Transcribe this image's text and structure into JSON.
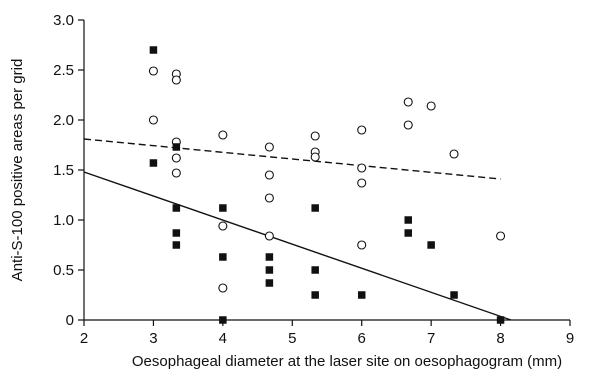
{
  "chart_data": {
    "type": "scatter",
    "title": "",
    "xlabel": "Oesophageal diameter at the laser site on oesophagogram (mm)",
    "ylabel": "Anti-S-100 positive areas per grid",
    "xlim": [
      2,
      9
    ],
    "ylim": [
      0,
      3.0
    ],
    "xticks": [
      2,
      3,
      4,
      5,
      6,
      7,
      8,
      9
    ],
    "yticks": [
      0,
      0.5,
      1.0,
      1.5,
      2.0,
      2.5,
      3.0
    ],
    "ytick_labels": [
      "0",
      "0.5",
      "1.0",
      "1.5",
      "2.0",
      "2.5",
      "3.0"
    ],
    "grid": false,
    "series": [
      {
        "marker": "open-circle",
        "points": [
          [
            3.0,
            2.49
          ],
          [
            3.0,
            2.0
          ],
          [
            3.33,
            2.46
          ],
          [
            3.33,
            2.4
          ],
          [
            3.33,
            1.78
          ],
          [
            3.33,
            1.62
          ],
          [
            3.33,
            1.47
          ],
          [
            4.0,
            1.85
          ],
          [
            4.0,
            0.94
          ],
          [
            4.0,
            0.32
          ],
          [
            4.67,
            1.73
          ],
          [
            4.67,
            1.45
          ],
          [
            4.67,
            1.22
          ],
          [
            4.67,
            0.84
          ],
          [
            5.33,
            1.84
          ],
          [
            5.33,
            1.68
          ],
          [
            5.33,
            1.63
          ],
          [
            6.0,
            1.9
          ],
          [
            6.0,
            1.52
          ],
          [
            6.0,
            1.37
          ],
          [
            6.0,
            0.75
          ],
          [
            6.67,
            2.18
          ],
          [
            6.67,
            1.95
          ],
          [
            7.0,
            2.14
          ],
          [
            7.33,
            1.66
          ],
          [
            8.0,
            0.84
          ]
        ],
        "fit_line": {
          "style": "dashed",
          "from": [
            2,
            1.81
          ],
          "to": [
            8,
            1.41
          ]
        }
      },
      {
        "marker": "filled-square",
        "points": [
          [
            3.0,
            2.7
          ],
          [
            3.0,
            1.57
          ],
          [
            3.33,
            1.73
          ],
          [
            3.33,
            1.12
          ],
          [
            3.33,
            0.87
          ],
          [
            3.33,
            0.75
          ],
          [
            4.0,
            1.12
          ],
          [
            4.0,
            0.63
          ],
          [
            4.0,
            0.0
          ],
          [
            4.67,
            0.63
          ],
          [
            4.67,
            0.5
          ],
          [
            4.67,
            0.37
          ],
          [
            5.33,
            1.12
          ],
          [
            5.33,
            0.5
          ],
          [
            5.33,
            0.25
          ],
          [
            6.0,
            0.25
          ],
          [
            6.67,
            1.0
          ],
          [
            6.67,
            0.87
          ],
          [
            7.0,
            0.75
          ],
          [
            7.33,
            0.25
          ],
          [
            8.0,
            0.0
          ]
        ],
        "fit_line": {
          "style": "solid",
          "from": [
            2,
            1.48
          ],
          "to": [
            8.15,
            0.0
          ]
        }
      }
    ]
  }
}
